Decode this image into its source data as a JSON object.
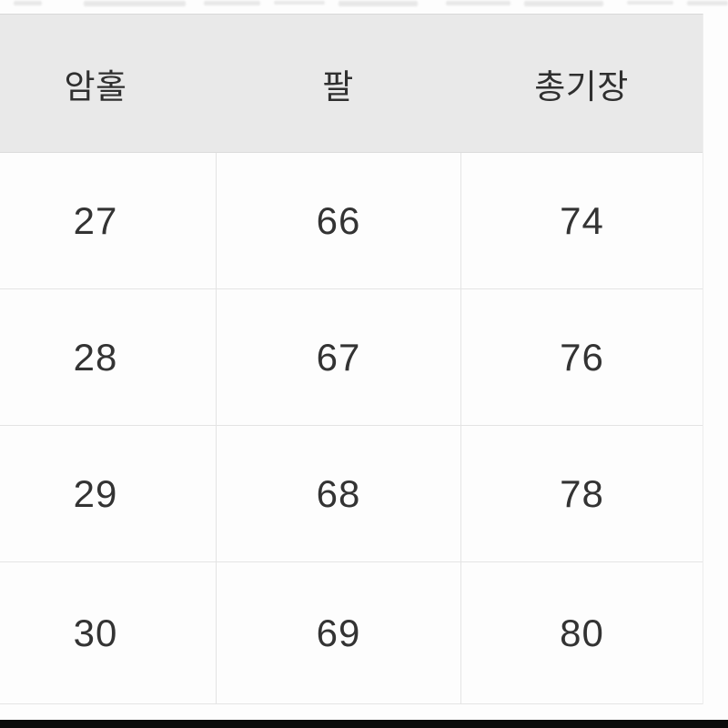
{
  "table": {
    "headers": [
      "암홀",
      "팔",
      "총기장"
    ],
    "rows": [
      [
        "27",
        "66",
        "74"
      ],
      [
        "28",
        "67",
        "76"
      ],
      [
        "29",
        "68",
        "78"
      ],
      [
        "30",
        "69",
        "80"
      ]
    ]
  },
  "colors": {
    "page_bg": "#fdfdfd",
    "header_bg": "#e9e9e9",
    "divider": "#e4e4e4",
    "text": "#333333",
    "bottom_bar": "#0b0b0b"
  }
}
